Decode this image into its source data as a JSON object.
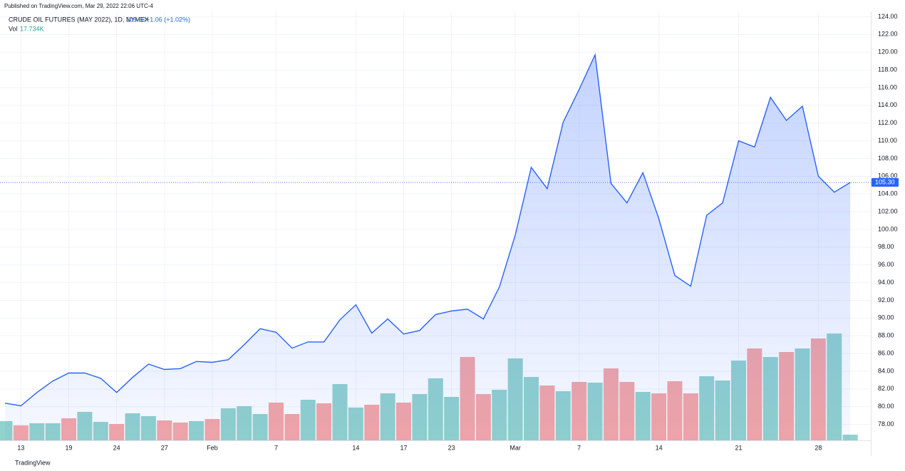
{
  "published": "Published on TradingView.com, Mar 29, 2022 22:06 UTC-4",
  "footer": "TradingView",
  "chart_data": {
    "type": "area",
    "title": "CRUDE OIL FUTURES (MAY 2022), 1D, NYMEX",
    "price": "105.30",
    "change": "+1.06 (+1.02%)",
    "volume_title": "Vol",
    "volume_label": "17.734K",
    "last_label": "105.30",
    "color": "#2962ff",
    "categories": [
      null,
      "13",
      null,
      null,
      "19",
      null,
      null,
      "24",
      null,
      null,
      "27",
      null,
      null,
      "Feb",
      null,
      null,
      null,
      "7",
      null,
      null,
      null,
      null,
      "14",
      null,
      null,
      "17",
      null,
      null,
      "23",
      null,
      null,
      null,
      "Mar",
      null,
      null,
      null,
      "7",
      null,
      null,
      null,
      null,
      "14",
      null,
      null,
      null,
      null,
      "21",
      null,
      null,
      null,
      null,
      "28",
      null,
      null
    ],
    "values": [
      80.4,
      80.1,
      81.6,
      82.9,
      83.8,
      83.8,
      83.2,
      81.6,
      83.3,
      84.8,
      84.2,
      84.3,
      85.1,
      85.0,
      85.3,
      87.0,
      88.8,
      88.4,
      86.6,
      87.3,
      87.3,
      89.8,
      91.5,
      88.3,
      89.9,
      88.2,
      88.6,
      90.4,
      90.8,
      91.0,
      89.9,
      93.5,
      99.4,
      107.0,
      104.6,
      112.1,
      115.8,
      119.7,
      105.2,
      103.0,
      106.4,
      101.2,
      94.8,
      93.6,
      101.6,
      103.0,
      110.0,
      109.3,
      114.9,
      112.3,
      113.9,
      106.0,
      104.2,
      105.3
    ],
    "volume": {
      "values": [
        59900,
        46600,
        53200,
        53200,
        68700,
        88700,
        57600,
        51000,
        84200,
        75400,
        62100,
        55400,
        59900,
        66500,
        99800,
        106400,
        82000,
        117500,
        82000,
        126400,
        115300,
        175100,
        102000,
        110900,
        146300,
        117500,
        144100,
        192900,
        135200,
        259400,
        144100,
        157400,
        255000,
        197300,
        170700,
        153000,
        181800,
        179600,
        223900,
        181800,
        150800,
        146300,
        184000,
        146300,
        199500,
        186200,
        248300,
        286000,
        259400,
        274900,
        286000,
        317000,
        332600,
        17734
      ],
      "colors": [
        "#92d2cc",
        "#f5a6a5",
        "#92d2cc",
        "#92d2cc",
        "#f5a6a5",
        "#92d2cc",
        "#92d2cc",
        "#f5a6a5",
        "#92d2cc",
        "#92d2cc",
        "#f5a6a5",
        "#f5a6a5",
        "#92d2cc",
        "#f5a6a5",
        "#92d2cc",
        "#92d2cc",
        "#92d2cc",
        "#f5a6a5",
        "#f5a6a5",
        "#92d2cc",
        "#f5a6a5",
        "#92d2cc",
        "#92d2cc",
        "#f5a6a5",
        "#92d2cc",
        "#f5a6a5",
        "#92d2cc",
        "#92d2cc",
        "#92d2cc",
        "#f5a6a5",
        "#f5a6a5",
        "#92d2cc",
        "#92d2cc",
        "#92d2cc",
        "#f5a6a5",
        "#92d2cc",
        "#f5a6a5",
        "#92d2cc",
        "#f5a6a5",
        "#f5a6a5",
        "#92d2cc",
        "#f5a6a5",
        "#f5a6a5",
        "#f5a6a5",
        "#92d2cc",
        "#92d2cc",
        "#92d2cc",
        "#f5a6a5",
        "#92d2cc",
        "#f5a6a5",
        "#92d2cc",
        "#f5a6a5",
        "#92d2cc",
        "#92d2cc"
      ]
    },
    "ylim": [
      76.2,
      124.6
    ],
    "yticks": [
      {
        "value": 78,
        "label": "78.00"
      },
      {
        "value": 80,
        "label": "80.00"
      },
      {
        "value": 82,
        "label": "82.00"
      },
      {
        "value": 84,
        "label": "84.00"
      },
      {
        "value": 86,
        "label": "86.00"
      },
      {
        "value": 88,
        "label": "88.00"
      },
      {
        "value": 90,
        "label": "90.00"
      },
      {
        "value": 92,
        "label": "92.00"
      },
      {
        "value": 94,
        "label": "94.00"
      },
      {
        "value": 96,
        "label": "96.00"
      },
      {
        "value": 98,
        "label": "98.00"
      },
      {
        "value": 100,
        "label": "100.00"
      },
      {
        "value": 102,
        "label": "102.00"
      },
      {
        "value": 104,
        "label": "104.00"
      },
      {
        "value": 106,
        "label": "106.00"
      },
      {
        "value": 108,
        "label": "108.00"
      },
      {
        "value": 110,
        "label": "110.00"
      },
      {
        "value": 112,
        "label": "112.00"
      },
      {
        "value": 114,
        "label": "114.00"
      },
      {
        "value": 116,
        "label": "116.00"
      },
      {
        "value": 118,
        "label": "118.00"
      },
      {
        "value": 120,
        "label": "120.00"
      },
      {
        "value": 122,
        "label": "122.00"
      },
      {
        "value": 124,
        "label": "124.00"
      }
    ],
    "grid": true
  }
}
